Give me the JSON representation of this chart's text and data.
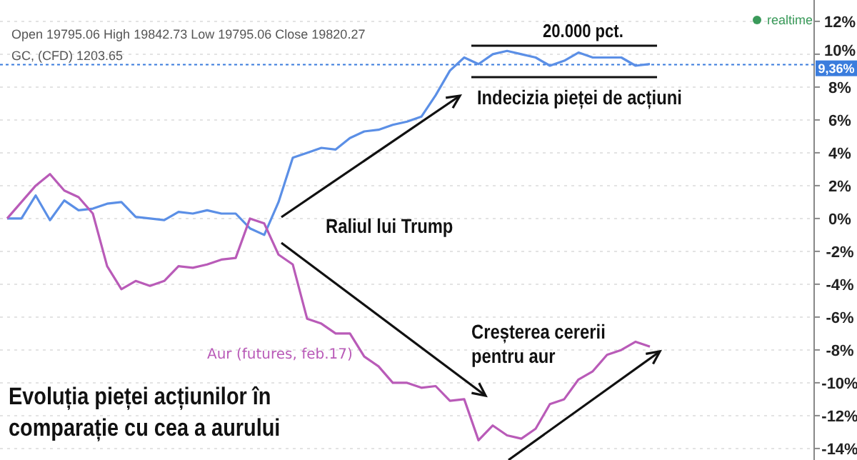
{
  "chart_data": {
    "type": "line",
    "title": "Evoluția pieței acțiunilor în comparație cu cea a aurului",
    "categories": [
      null,
      null,
      null,
      null,
      null,
      null,
      null,
      null,
      null,
      null,
      null,
      null,
      null,
      null,
      null,
      null,
      null,
      null,
      null,
      null,
      null,
      null,
      null,
      null,
      null,
      null,
      null,
      null,
      null,
      null,
      null,
      null,
      null,
      null,
      null,
      null,
      null,
      null,
      null,
      null,
      null,
      null,
      null,
      null,
      null,
      null
    ],
    "series": [
      {
        "color": "#5b8fe6",
        "values": [
          0,
          0,
          1.4,
          -0.1,
          1.1,
          0.5,
          0.6,
          0.9,
          1.0,
          0.1,
          0,
          -0.1,
          0.4,
          0.3,
          0.5,
          0.3,
          0.3,
          -0.6,
          -1.0,
          1.0,
          3.7,
          4.0,
          4.3,
          4.2,
          4.9,
          5.3,
          5.4,
          5.7,
          5.9,
          6.2,
          7.5,
          9.0,
          9.8,
          9.4,
          10.0,
          10.2,
          10.0,
          9.8,
          9.3,
          9.6,
          10.1,
          9.8,
          9.8,
          9.8,
          9.3,
          9.4
        ]
      },
      {
        "name": "Aur (futures, feb.17)",
        "color": "#b95bb8",
        "values": [
          0,
          1.0,
          2.0,
          2.7,
          1.7,
          1.3,
          0.3,
          -2.9,
          -4.3,
          -3.8,
          -4.1,
          -3.8,
          -2.9,
          -3.0,
          -2.8,
          -2.5,
          -2.4,
          0,
          -0.3,
          -2.2,
          -2.8,
          -6.1,
          -6.4,
          -7.0,
          -7.0,
          -8.4,
          -9.0,
          -10.0,
          -10.0,
          -10.3,
          -10.2,
          -11.1,
          -11.0,
          -13.5,
          -12.6,
          -13.2,
          -13.4,
          -12.8,
          -11.3,
          -11.0,
          -9.8,
          -9.3,
          -8.3,
          -8.0,
          -7.5,
          -7.8
        ]
      }
    ],
    "ylim": [
      -14.7,
      13.3
    ],
    "yticks": [
      {
        "value": -14,
        "label": "-14%"
      },
      {
        "value": -12,
        "label": "-12%"
      },
      {
        "value": -10,
        "label": "-10%"
      },
      {
        "value": -8,
        "label": "-8%"
      },
      {
        "value": -6,
        "label": "-6%"
      },
      {
        "value": -4,
        "label": "-4%"
      },
      {
        "value": -2,
        "label": "-2%"
      },
      {
        "value": 0,
        "label": "0%"
      },
      {
        "value": 2,
        "label": "2%"
      },
      {
        "value": 4,
        "label": "4%"
      },
      {
        "value": 6,
        "label": "6%"
      },
      {
        "value": 8,
        "label": "8%"
      },
      {
        "value": 10,
        "label": "10%"
      },
      {
        "value": 12,
        "label": "12%"
      }
    ],
    "ref_lines": [
      {
        "axis": "y",
        "value": 9.36,
        "label": "9,36%",
        "color": "#3b7ddd",
        "line_style": "dotted"
      }
    ],
    "annotations": [
      "Open 19795.06 High 19842.73 Low 19795.06 Close 19820.27",
      "GC, (CFD) 1203.65",
      "realtime",
      "Raliul lui Trump",
      "20.000 pct.",
      "Indecizia pieței de acțiuni",
      "Creșterea cererii pentru aur"
    ],
    "grid": "y",
    "tick_labels": "y",
    "line_style": "solid"
  }
}
